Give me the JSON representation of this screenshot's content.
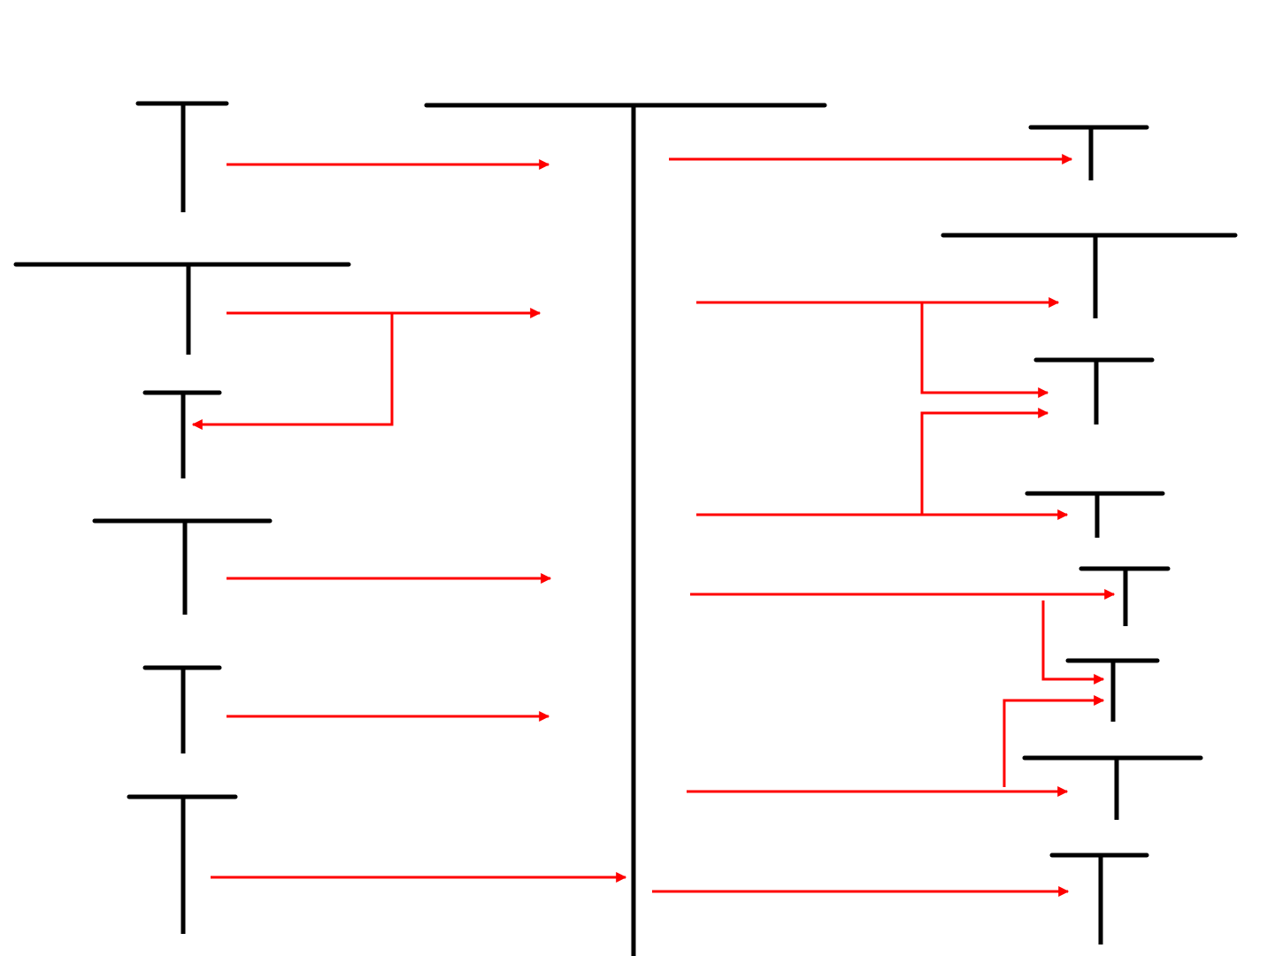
{
  "colors": {
    "background": "#ffffff",
    "t_account": "#000000",
    "flow_arrow": "#ff0000"
  },
  "diagram": {
    "kind": "t-account flow diagram",
    "labels_visible": false,
    "central_account": "central-t-account",
    "source_accounts": [
      "t-account-left-1",
      "t-account-left-2",
      "t-account-left-3",
      "t-account-left-4",
      "t-account-left-5",
      "t-account-left-6"
    ],
    "destination_accounts": [
      "t-account-right-1",
      "t-account-right-2",
      "t-account-right-3",
      "t-account-right-4",
      "t-account-right-5",
      "t-account-right-6",
      "t-account-right-7",
      "t-account-right-8"
    ]
  }
}
